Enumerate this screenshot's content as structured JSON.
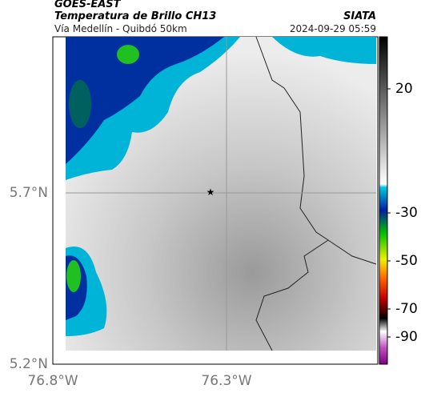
{
  "header": {
    "left_title": "GOES-EAST",
    "left_subtitle": "Temperatura de Brillo CH13",
    "left_caption": "Vía Medellín - Quibdó 50km",
    "right_title": "SIATA",
    "right_caption": "2024-09-29 05:59"
  },
  "map": {
    "lat_labels": [
      "5.7°N",
      "5.2°N"
    ],
    "lon_labels": [
      "76.8°W",
      "76.3°W"
    ]
  },
  "colorbar": {
    "tick_labels": [
      "20",
      "-30",
      "-50",
      "-70",
      "-90"
    ]
  }
}
